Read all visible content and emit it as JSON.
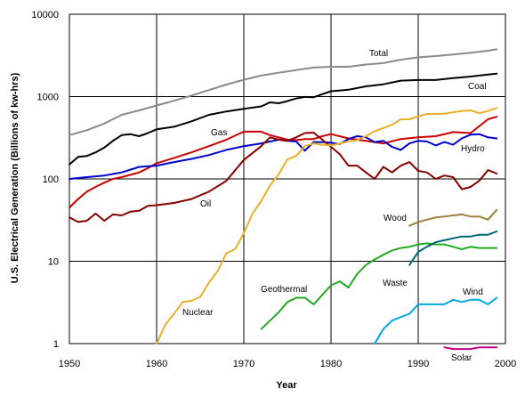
{
  "chart_data": {
    "type": "line",
    "xlabel": "Year",
    "ylabel": "U.S. Electrical Generation (Billions of kw-hrs)",
    "xlim": [
      1950,
      2000
    ],
    "ylim": [
      1,
      10000
    ],
    "y_scale": "log",
    "grid": true,
    "x_ticks": [
      "1950",
      "1960",
      "1970",
      "1980",
      "1990",
      "2000"
    ],
    "y_ticks": [
      "1",
      "10",
      "100",
      "1000",
      "10000"
    ],
    "series": [
      {
        "name": "Total",
        "color": "#8a8a8a",
        "x": [
          1950,
          1952,
          1954,
          1956,
          1958,
          1960,
          1962,
          1964,
          1966,
          1968,
          1970,
          1972,
          1974,
          1976,
          1978,
          1980,
          1982,
          1984,
          1986,
          1988,
          1990,
          1992,
          1994,
          1996,
          1998,
          1999
        ],
        "y": [
          340,
          390,
          470,
          600,
          680,
          780,
          890,
          1030,
          1200,
          1400,
          1600,
          1800,
          1950,
          2100,
          2250,
          2300,
          2300,
          2450,
          2550,
          2800,
          3000,
          3100,
          3250,
          3400,
          3600,
          3750
        ]
      },
      {
        "name": "Coal",
        "color": "#000000",
        "x": [
          1950,
          1951,
          1952,
          1953,
          1954,
          1955,
          1956,
          1957,
          1958,
          1959,
          1960,
          1962,
          1964,
          1966,
          1968,
          1970,
          1972,
          1973,
          1974,
          1975,
          1976,
          1977,
          1978,
          1979,
          1980,
          1982,
          1984,
          1986,
          1988,
          1990,
          1992,
          1994,
          1996,
          1998,
          1999
        ],
        "y": [
          150,
          185,
          190,
          210,
          240,
          290,
          340,
          350,
          330,
          360,
          400,
          430,
          500,
          600,
          660,
          710,
          760,
          850,
          830,
          880,
          950,
          990,
          980,
          1070,
          1160,
          1210,
          1330,
          1410,
          1560,
          1590,
          1590,
          1680,
          1750,
          1850,
          1900
        ]
      },
      {
        "name": "Gas",
        "color": "#cc0000",
        "x": [
          1950,
          1951,
          1952,
          1953,
          1954,
          1955,
          1956,
          1957,
          1958,
          1959,
          1960,
          1962,
          1964,
          1966,
          1968,
          1970,
          1972,
          1973,
          1974,
          1975,
          1976,
          1977,
          1978,
          1979,
          1980,
          1982,
          1984,
          1986,
          1988,
          1990,
          1992,
          1994,
          1996,
          1998,
          1999
        ],
        "y": [
          45,
          57,
          70,
          80,
          90,
          100,
          105,
          112,
          120,
          135,
          155,
          180,
          210,
          250,
          300,
          375,
          375,
          340,
          320,
          300,
          295,
          305,
          305,
          330,
          350,
          310,
          290,
          270,
          305,
          320,
          330,
          370,
          360,
          530,
          570
        ]
      },
      {
        "name": "Hydro",
        "color": "#0000cc",
        "x": [
          1950,
          1952,
          1954,
          1956,
          1958,
          1960,
          1962,
          1964,
          1966,
          1968,
          1970,
          1972,
          1974,
          1975,
          1976,
          1977,
          1978,
          1979,
          1980,
          1981,
          1982,
          1983,
          1984,
          1985,
          1986,
          1987,
          1988,
          1989,
          1990,
          1991,
          1992,
          1993,
          1994,
          1995,
          1996,
          1997,
          1998,
          1999
        ],
        "y": [
          100,
          105,
          110,
          120,
          140,
          145,
          160,
          175,
          195,
          225,
          250,
          270,
          300,
          290,
          285,
          220,
          280,
          280,
          275,
          265,
          305,
          330,
          320,
          280,
          290,
          245,
          225,
          270,
          290,
          285,
          255,
          280,
          260,
          310,
          345,
          350,
          320,
          310
        ]
      },
      {
        "name": "Oil",
        "color": "#880000",
        "x": [
          1950,
          1951,
          1952,
          1953,
          1954,
          1955,
          1956,
          1957,
          1958,
          1959,
          1960,
          1962,
          1964,
          1966,
          1968,
          1970,
          1972,
          1973,
          1974,
          1975,
          1976,
          1977,
          1978,
          1979,
          1980,
          1981,
          1982,
          1983,
          1984,
          1985,
          1986,
          1987,
          1988,
          1989,
          1990,
          1991,
          1992,
          1993,
          1994,
          1995,
          1996,
          1997,
          1998,
          1999
        ],
        "y": [
          34,
          30,
          31,
          38,
          31,
          37,
          36,
          40,
          41,
          47,
          48,
          51,
          57,
          70,
          95,
          170,
          250,
          320,
          300,
          290,
          320,
          360,
          365,
          300,
          245,
          200,
          145,
          145,
          120,
          100,
          140,
          120,
          145,
          160,
          125,
          120,
          100,
          110,
          105,
          75,
          80,
          95,
          128,
          116
        ]
      },
      {
        "name": "Nuclear",
        "color": "#e8b02a",
        "x": [
          1960,
          1961,
          1962,
          1963,
          1964,
          1965,
          1966,
          1967,
          1968,
          1969,
          1970,
          1971,
          1972,
          1973,
          1974,
          1975,
          1976,
          1977,
          1978,
          1979,
          1980,
          1981,
          1982,
          1983,
          1984,
          1985,
          1986,
          1987,
          1988,
          1989,
          1990,
          1991,
          1992,
          1993,
          1994,
          1995,
          1996,
          1997,
          1998,
          1999
        ],
        "y": [
          1,
          1.7,
          2.3,
          3.2,
          3.3,
          3.7,
          5.5,
          7.6,
          12.5,
          14,
          22,
          38,
          54,
          83,
          114,
          173,
          190,
          250,
          270,
          260,
          255,
          270,
          285,
          295,
          330,
          380,
          415,
          455,
          530,
          530,
          575,
          615,
          615,
          620,
          645,
          670,
          680,
          630,
          670,
          725
        ]
      },
      {
        "name": "Geothermal",
        "color": "#22aa22",
        "x": [
          1972,
          1973,
          1974,
          1975,
          1976,
          1977,
          1978,
          1979,
          1980,
          1981,
          1982,
          1983,
          1984,
          1985,
          1986,
          1987,
          1988,
          1989,
          1990,
          1991,
          1992,
          1993,
          1994,
          1995,
          1996,
          1997,
          1998,
          1999
        ],
        "y": [
          1.5,
          1.9,
          2.4,
          3.2,
          3.6,
          3.6,
          3.0,
          3.9,
          5.1,
          5.7,
          4.8,
          7.0,
          9.0,
          10.5,
          12.0,
          13.5,
          14.5,
          15.0,
          16.0,
          16.5,
          16.0,
          16.0,
          15.0,
          14.0,
          15.0,
          14.5,
          14.5,
          14.5
        ]
      },
      {
        "name": "Wood",
        "color": "#a08040",
        "x": [
          1989,
          1990,
          1991,
          1992,
          1993,
          1994,
          1995,
          1996,
          1997,
          1998,
          1999
        ],
        "y": [
          27,
          30,
          32,
          34,
          35,
          36,
          37,
          35,
          35,
          32,
          42
        ]
      },
      {
        "name": "Waste",
        "color": "#006677",
        "x": [
          1989,
          1990,
          1991,
          1992,
          1993,
          1994,
          1995,
          1996,
          1997,
          1998,
          1999
        ],
        "y": [
          9,
          13,
          15,
          17,
          18,
          19,
          20,
          20,
          21,
          21,
          23
        ]
      },
      {
        "name": "Wind",
        "color": "#00aadd",
        "x": [
          1985,
          1986,
          1987,
          1988,
          1989,
          1990,
          1991,
          1992,
          1993,
          1994,
          1995,
          1996,
          1997,
          1998,
          1999
        ],
        "y": [
          1,
          1.5,
          1.9,
          2.1,
          2.3,
          3.0,
          3.0,
          3.0,
          3.0,
          3.4,
          3.2,
          3.4,
          3.4,
          3.0,
          3.6
        ]
      },
      {
        "name": "Solar",
        "color": "#cc0088",
        "x": [
          1993,
          1994,
          1995,
          1996,
          1997,
          1998,
          1999
        ],
        "y": [
          0.9,
          0.86,
          0.86,
          0.86,
          0.9,
          0.9,
          0.9
        ]
      }
    ]
  }
}
